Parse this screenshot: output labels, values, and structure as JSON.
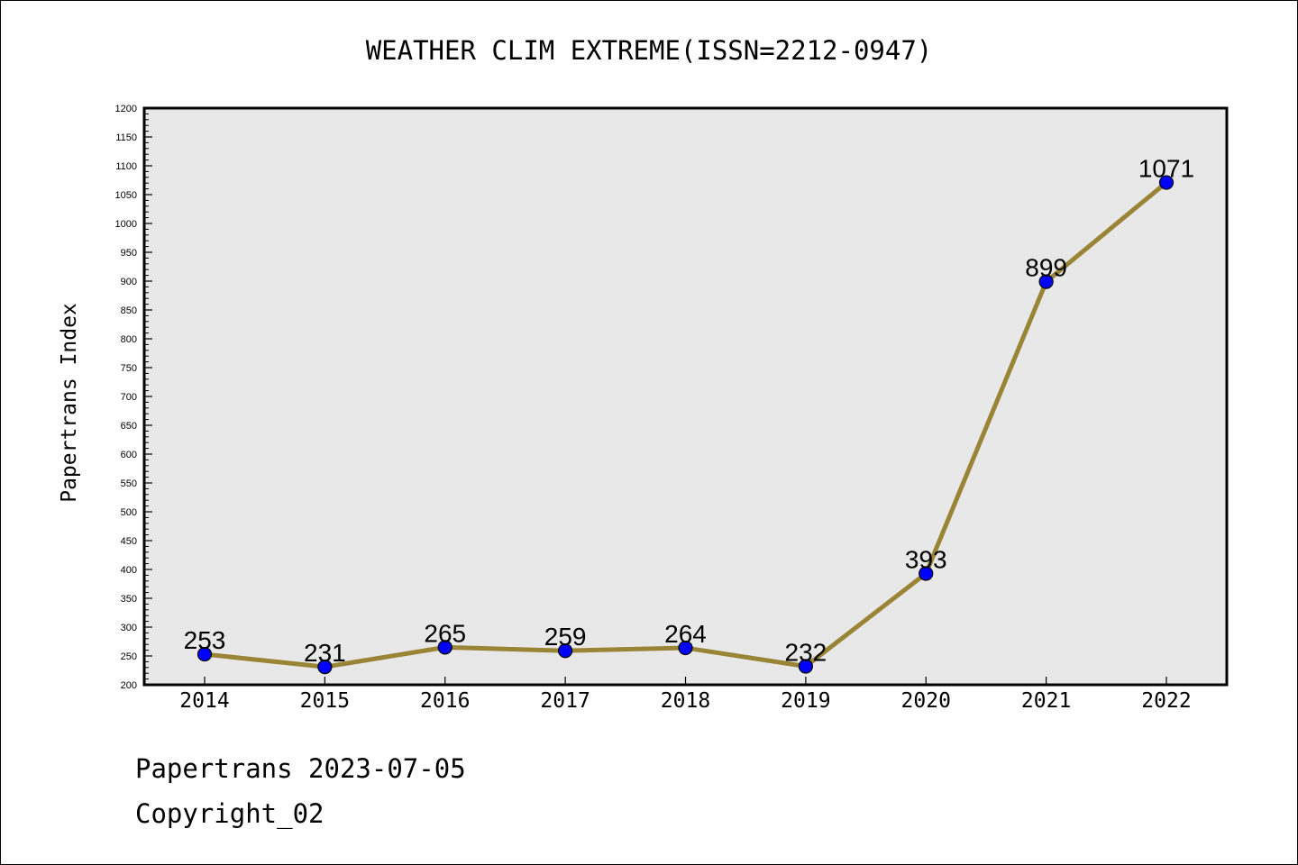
{
  "chart_data": {
    "type": "line",
    "title": "WEATHER CLIM EXTREME(ISSN=2212-0947)",
    "xlabel": "",
    "ylabel": "Papertrans Index",
    "categories": [
      "2014",
      "2015",
      "2016",
      "2017",
      "2018",
      "2019",
      "2020",
      "2021",
      "2022"
    ],
    "series": [
      {
        "values": [
          253,
          231,
          265,
          259,
          264,
          232,
          393,
          899,
          1071
        ],
        "labels": [
          "253",
          "231",
          "265",
          "259",
          "264",
          "232",
          "393",
          "899",
          "1071"
        ],
        "line_color": "#9a8436",
        "marker_color": "#0000ff"
      }
    ],
    "ylim": [
      200,
      1200
    ],
    "ytick_step": 50,
    "y_ticks": [
      "200",
      "250",
      "300",
      "350",
      "400",
      "450",
      "500",
      "550",
      "600",
      "650",
      "700",
      "750",
      "800",
      "850",
      "900",
      "950",
      "1000",
      "1050",
      "1100",
      "1150",
      "1200"
    ],
    "grid": false,
    "legend": "none",
    "plot_background": "#e8e8e8"
  },
  "footer": {
    "line1": "Papertrans 2023-07-05",
    "line2": "Copyright_02"
  }
}
